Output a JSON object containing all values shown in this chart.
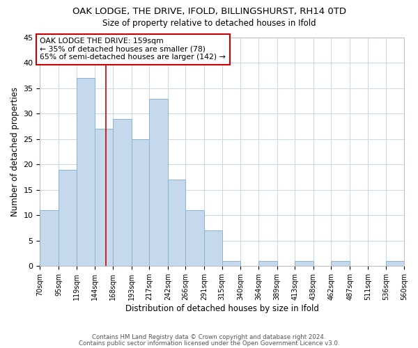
{
  "title": "OAK LODGE, THE DRIVE, IFOLD, BILLINGSHURST, RH14 0TD",
  "subtitle": "Size of property relative to detached houses in Ifold",
  "xlabel": "Distribution of detached houses by size in Ifold",
  "ylabel": "Number of detached properties",
  "bar_color": "#c6d9ec",
  "bar_edge_color": "#8ab4d4",
  "vline_x": 159,
  "vline_color": "#cc0000",
  "annotation_text": "OAK LODGE THE DRIVE: 159sqm\n← 35% of detached houses are smaller (78)\n65% of semi-detached houses are larger (142) →",
  "annotation_box_color": "#ffffff",
  "annotation_box_edge": "#cc0000",
  "bin_edges": [
    70,
    95,
    119,
    144,
    168,
    193,
    217,
    242,
    266,
    291,
    315,
    340,
    364,
    389,
    413,
    438,
    462,
    487,
    511,
    536,
    560
  ],
  "bin_heights": [
    11,
    19,
    37,
    27,
    29,
    25,
    33,
    17,
    11,
    7,
    1,
    0,
    1,
    0,
    1,
    0,
    1,
    0,
    0,
    1
  ],
  "tick_labels": [
    "70sqm",
    "95sqm",
    "119sqm",
    "144sqm",
    "168sqm",
    "193sqm",
    "217sqm",
    "242sqm",
    "266sqm",
    "291sqm",
    "315sqm",
    "340sqm",
    "364sqm",
    "389sqm",
    "413sqm",
    "438sqm",
    "462sqm",
    "487sqm",
    "511sqm",
    "536sqm",
    "560sqm"
  ],
  "ylim": [
    0,
    45
  ],
  "yticks": [
    0,
    5,
    10,
    15,
    20,
    25,
    30,
    35,
    40,
    45
  ],
  "footnote1": "Contains HM Land Registry data © Crown copyright and database right 2024.",
  "footnote2": "Contains public sector information licensed under the Open Government Licence v3.0.",
  "bg_color": "#ffffff",
  "grid_color": "#c8d8e8"
}
